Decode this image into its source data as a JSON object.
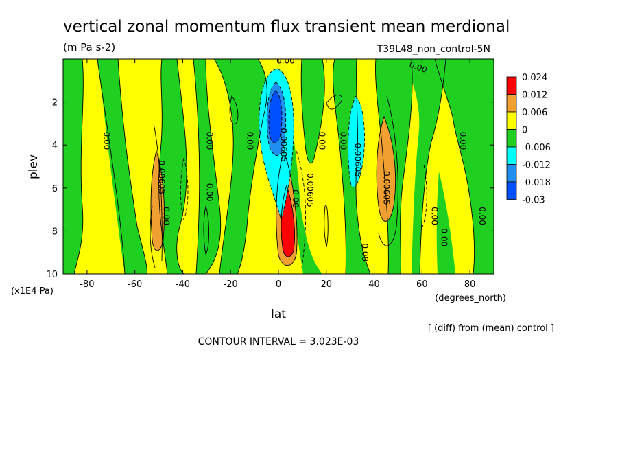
{
  "chart_data": {
    "type": "heatmap",
    "title": "vertical zonal momentum flux transient mean merdional",
    "units": "(m Pa s-2)",
    "run_label": "T39L48_non_control-5N",
    "xlabel": "lat",
    "xunits": "(degrees_north)",
    "ylabel": "plev",
    "yunits": "(x1E4 Pa)",
    "xlim": [
      -90,
      90
    ],
    "ylim": [
      10,
      0
    ],
    "x_ticks": [
      -80,
      -60,
      -40,
      -20,
      0,
      20,
      40,
      60,
      80
    ],
    "y_ticks": [
      2,
      4,
      6,
      8,
      10
    ],
    "contour_interval_text": "CONTOUR INTERVAL = 3.023E-03",
    "footnote": "[ (diff) from (mean) control ]",
    "legend": {
      "placement": "right",
      "labels": [
        "0.024",
        "0.012",
        "0.006",
        "0",
        "-0.006",
        "-0.012",
        "-0.018",
        "-0.03"
      ],
      "colors": [
        "#ff0000",
        "#f0a030",
        "#ffff00",
        "#20d020",
        "#00ffff",
        "#2090f0",
        "#0050ff"
      ]
    },
    "contour_labels": [
      {
        "text": "0.00",
        "x": 3,
        "y": 0.2
      },
      {
        "text": "0.00",
        "x": 58,
        "y": 0.5
      },
      {
        "text": "0.00",
        "x": -73,
        "y": 3.8
      },
      {
        "text": "0.00",
        "x": -30,
        "y": 3.8
      },
      {
        "text": "0.00",
        "x": -13,
        "y": 3.8
      },
      {
        "text": "0.00",
        "x": 17,
        "y": 3.8
      },
      {
        "text": "0.00",
        "x": 26,
        "y": 3.8
      },
      {
        "text": "0.00",
        "x": 76,
        "y": 3.8
      },
      {
        "text": "0.00605",
        "x": 1,
        "y": 4.0
      },
      {
        "text": "0.00605",
        "x": 32,
        "y": 4.7
      },
      {
        "text": "0.00605",
        "x": 12,
        "y": 6.1
      },
      {
        "text": "0.00605",
        "x": -50,
        "y": 5.5
      },
      {
        "text": "0.00605",
        "x": 44,
        "y": 6.0
      },
      {
        "text": "0.00",
        "x": -48,
        "y": 7.3
      },
      {
        "text": "0.00",
        "x": -30,
        "y": 6.2
      },
      {
        "text": "0.00",
        "x": 6,
        "y": 6.5
      },
      {
        "text": "0.00",
        "x": 64,
        "y": 7.3
      },
      {
        "text": "0.00",
        "x": 84,
        "y": 7.3
      },
      {
        "text": "0.00",
        "x": 68,
        "y": 8.3
      },
      {
        "text": "0.00",
        "x": 35,
        "y": 9.0
      }
    ]
  }
}
